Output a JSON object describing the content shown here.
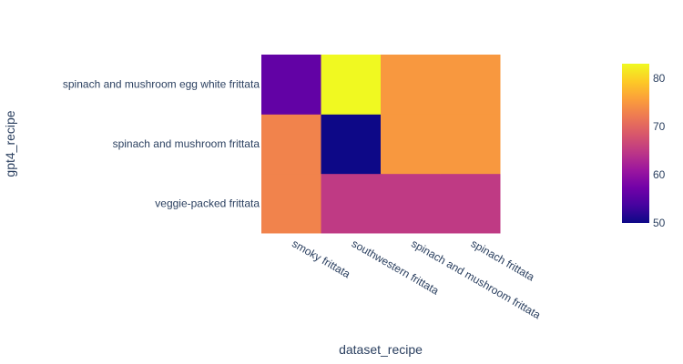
{
  "chart_data": {
    "type": "heatmap",
    "title": "",
    "xlabel": "dataset_recipe",
    "ylabel": "gpt4_recipe",
    "x_categories": [
      "smoky frittata",
      "southwestern frittata",
      "spinach and mushroom frittata",
      "spinach frittata"
    ],
    "y_categories": [
      "veggie-packed frittata",
      "spinach and mushroom frittata",
      "spinach and mushroom egg white frittata"
    ],
    "z": [
      [
        73,
        65,
        65,
        65
      ],
      [
        73,
        50,
        75,
        75
      ],
      [
        56,
        83,
        75,
        75
      ]
    ],
    "colorscale": [
      "#0d0887",
      "#46039f",
      "#7201a8",
      "#9c179e",
      "#bd3786",
      "#d8576b",
      "#ed7953",
      "#fb9f3a",
      "#fdca26",
      "#f0f921"
    ],
    "zmin": 50,
    "zmax": 83,
    "colorbar_ticks": [
      50,
      60,
      70,
      80
    ],
    "colorbar_tick_labels": [
      "50",
      "60",
      "70",
      "80"
    ]
  }
}
